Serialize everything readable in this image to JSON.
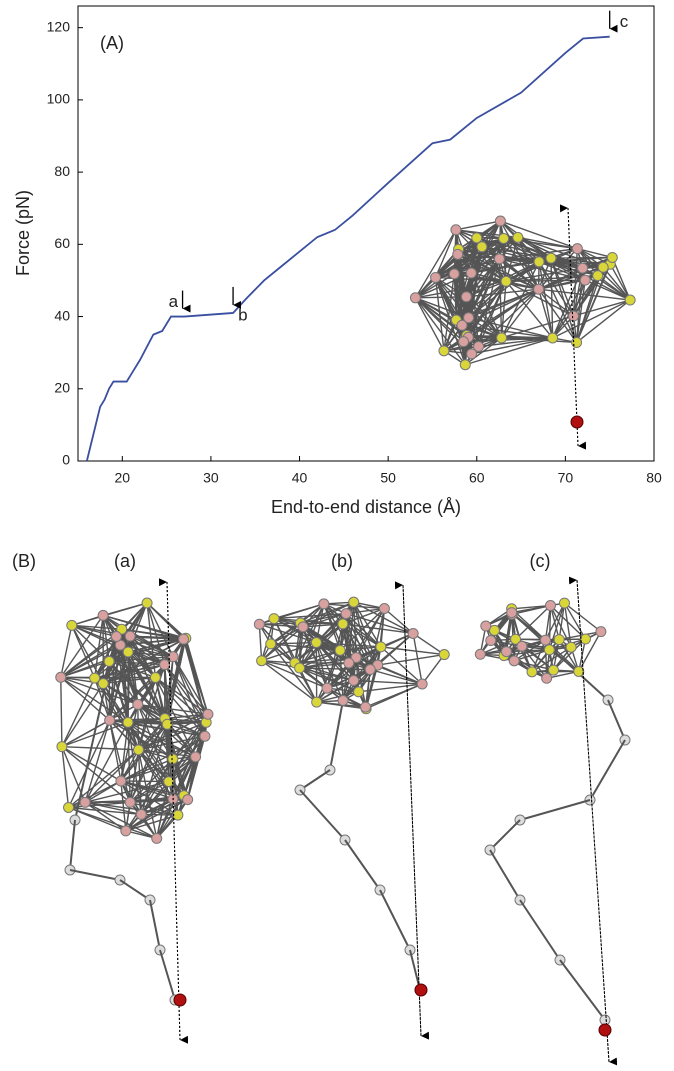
{
  "chart_data": {
    "type": "line",
    "panel_label": "(A)",
    "x_label": "End-to-end distance (Å)",
    "y_label": "Force (pN)",
    "xlim": [
      15,
      80
    ],
    "ylim": [
      0,
      126
    ],
    "xticks": [
      20,
      30,
      40,
      50,
      60,
      70,
      80
    ],
    "yticks": [
      0,
      20,
      40,
      60,
      80,
      100,
      120
    ],
    "series": [
      {
        "color": "#3a4fa0",
        "x": [
          16,
          17,
          17.5,
          18,
          18.5,
          19,
          20.5,
          21,
          22,
          23.5,
          24.5,
          25.5,
          27,
          32.5,
          34,
          36,
          38,
          40,
          42,
          44,
          46,
          50,
          55,
          57,
          60,
          65,
          70,
          72,
          75
        ],
        "values": [
          0,
          10,
          15,
          17,
          20,
          22,
          22,
          24,
          28,
          35,
          36,
          40,
          40,
          41,
          45,
          50,
          54,
          58,
          62,
          64,
          68,
          77,
          88,
          89,
          95,
          102,
          113,
          117,
          117.5
        ]
      }
    ],
    "annotations": [
      {
        "text": "a",
        "x": 26.8,
        "y": 40
      },
      {
        "text": "b",
        "x": 32.5,
        "y": 41
      },
      {
        "text": "c",
        "x": 75,
        "y": 117.5
      }
    ]
  },
  "panel_b": {
    "label": "(B)",
    "structures": [
      "(a)",
      "(b)",
      "(c)"
    ]
  }
}
